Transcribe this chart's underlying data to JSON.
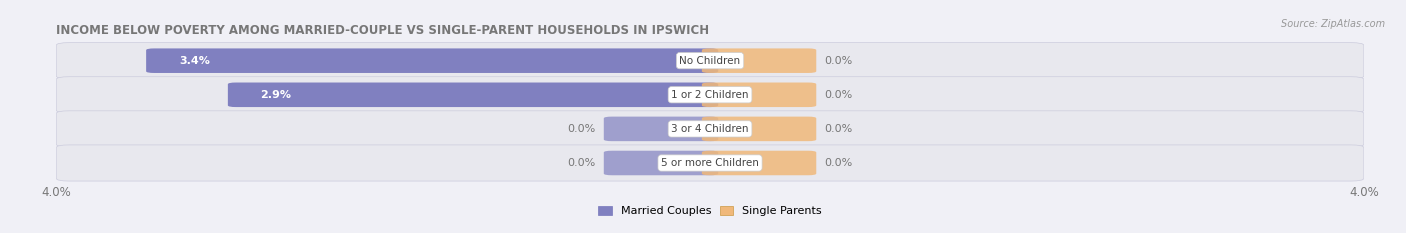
{
  "title": "INCOME BELOW POVERTY AMONG MARRIED-COUPLE VS SINGLE-PARENT HOUSEHOLDS IN IPSWICH",
  "source": "Source: ZipAtlas.com",
  "categories": [
    "No Children",
    "1 or 2 Children",
    "3 or 4 Children",
    "5 or more Children"
  ],
  "married_values": [
    3.4,
    2.9,
    0.0,
    0.0
  ],
  "single_values": [
    0.0,
    0.0,
    0.0,
    0.0
  ],
  "xlim_max": 4.0,
  "married_color": "#8080c0",
  "single_color": "#f0b87a",
  "row_bg_color": "#e8e8ee",
  "title_color": "#777777",
  "label_color_inside": "#ffffff",
  "label_color_outside": "#777777",
  "category_label_color": "#444444",
  "bar_height": 0.62,
  "small_bar_width": 0.6,
  "figsize": [
    14.06,
    2.33
  ],
  "dpi": 100,
  "source_color": "#999999"
}
